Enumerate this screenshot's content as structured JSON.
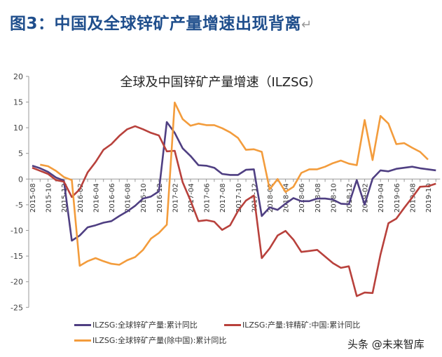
{
  "heading": {
    "text": "图3：中国及全球锌矿产量增速出现背离",
    "return_mark": "↵"
  },
  "watermark": "头条 @未来智库",
  "chart_data": {
    "type": "line",
    "title": "全球及中国锌矿产量增速（ILZSG）",
    "xlabel": "",
    "ylabel": "",
    "ylim": [
      -25,
      20
    ],
    "y_ticks": [
      20,
      15,
      10,
      5,
      0,
      -5,
      -10,
      -15,
      -20,
      -25
    ],
    "grid": false,
    "legend_position": "bottom",
    "x": [
      "2015-08",
      "2015-09",
      "2015-10",
      "2015-11",
      "2015-12",
      "2016-01",
      "2016-02",
      "2016-03",
      "2016-04",
      "2016-05",
      "2016-06",
      "2016-07",
      "2016-08",
      "2016-09",
      "2016-10",
      "2016-11",
      "2016-12",
      "2017-01",
      "2017-02",
      "2017-03",
      "2017-04",
      "2017-05",
      "2017-06",
      "2017-07",
      "2017-08",
      "2017-09",
      "2017-10",
      "2017-11",
      "2017-12",
      "2018-01",
      "2018-02",
      "2018-03",
      "2018-04",
      "2018-05",
      "2018-06",
      "2018-07",
      "2018-08",
      "2018-09",
      "2018-10",
      "2018-11",
      "2018-12",
      "2019-01",
      "2019-02",
      "2019-03",
      "2019-04",
      "2019-05",
      "2019-06",
      "2019-07",
      "2019-08",
      "2019-09",
      "2019-10",
      "2019-11"
    ],
    "x_tick_labels": [
      "2015-08",
      "2015-10",
      "2015-12",
      "2016-02",
      "2016-04",
      "2016-06",
      "2016-08",
      "2016-10",
      "2016-12",
      "2017-02",
      "2017-04",
      "2017-06",
      "2017-08",
      "2017-10",
      "2017-12",
      "2018-02",
      "2018-04",
      "2018-06",
      "2018-08",
      "2018-10",
      "2018-12",
      "2019-02",
      "2019-04",
      "2019-06",
      "2019-08",
      "2019-10"
    ],
    "series": [
      {
        "name": "ILZSG:全球锌矿产量:累计同比",
        "color": "#4f3f82",
        "values": [
          2.6,
          2.1,
          1.4,
          0.3,
          -0.3,
          -12,
          -11,
          -9.4,
          -9,
          -8.5,
          -8.2,
          -7.2,
          -6.3,
          -5.2,
          -3.8,
          -3.4,
          -2.4,
          11.1,
          9,
          6,
          4.5,
          2.7,
          2.6,
          2.2,
          1,
          0.8,
          0.8,
          1.8,
          1.9,
          -7.2,
          -5.5,
          -6,
          -4.8,
          -3.7,
          -4.3,
          -4.3,
          -3.8,
          -3.8,
          -4,
          -4.8,
          -4.9,
          -0.2,
          -5,
          0.1,
          1.7,
          1.5,
          2,
          2.2,
          2.4,
          2.1,
          1.9,
          1.7
        ]
      },
      {
        "name": "ILZSG:产量:锌精矿:中国:累计同比",
        "color": "#b8413c",
        "values": [
          2.2,
          1.6,
          1,
          -0.2,
          -0.5,
          -3.5,
          -2,
          1.3,
          3.3,
          5.7,
          6.8,
          8.4,
          9.7,
          10.3,
          9.7,
          9,
          8.5,
          5.4,
          5.5,
          -0.6,
          -4.2,
          -8.2,
          -8,
          -8.3,
          -9.9,
          -9,
          -6.2,
          -4.2,
          -3.2,
          -15.4,
          -13.5,
          -11,
          -10.1,
          -11.8,
          -14.2,
          -14,
          -13.8,
          -15.1,
          -16.4,
          -17.3,
          -17,
          -22.8,
          -22.1,
          -22.2,
          -14.7,
          -8.6,
          -7.7,
          -5.6,
          -3.6,
          -1.5,
          -1.4,
          -0.9
        ]
      },
      {
        "name": "ILZSG:全球锌矿产量(除中国):累计同比",
        "color": "#f39c3c",
        "values": [
          null,
          2.8,
          2.5,
          1.6,
          0.4,
          -0.2,
          -16.9,
          -16,
          -15.4,
          -16,
          -16.5,
          -16.7,
          -15.8,
          -15.2,
          -13.8,
          -11.6,
          -10.5,
          -8.9,
          14.9,
          11.7,
          10.4,
          10.8,
          10.5,
          10.5,
          9.9,
          9.1,
          8,
          5.7,
          5.8,
          5.3,
          -2,
          0,
          -2.5,
          -1.5,
          1.2,
          1.9,
          1.9,
          2.4,
          3.1,
          3.6,
          3,
          2.7,
          11.5,
          3.7,
          12.3,
          10.8,
          6.8,
          7,
          6.1,
          5.3,
          3.8,
          null
        ]
      }
    ]
  }
}
